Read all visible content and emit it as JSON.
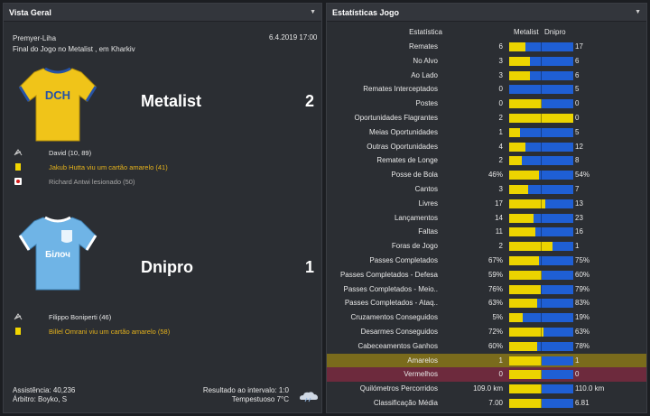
{
  "left_panel": {
    "title": "Vista Geral",
    "competition": "Premyer-Liha",
    "match_desc": "Final do Jogo no Metalist , em Kharkiv",
    "date_time": "6.4.2019 17:00",
    "home": {
      "name": "Metalist",
      "score": "2",
      "kit_text": "DCH",
      "kit_color": "#f0c419",
      "kit_trim": "#2753a6",
      "events": [
        {
          "icon": "goal-icon",
          "text": "David (10, 89)",
          "style": "white"
        },
        {
          "icon": "yellow-card-icon",
          "text": "Jakub Hutta viu um cartão amarelo (41)",
          "style": "yellow"
        },
        {
          "icon": "injury-icon",
          "text": "Richard Antwi lesionado (50)",
          "style": "grey"
        }
      ]
    },
    "away": {
      "name": "Dnipro",
      "score": "1",
      "kit_text": "Білоч",
      "kit_color": "#6fb4e6",
      "kit_trim": "#ffffff",
      "events": [
        {
          "icon": "goal-icon",
          "text": "Filippo Boniperti (46)",
          "style": "white"
        },
        {
          "icon": "yellow-card-icon",
          "text": "Billel Omrani viu um cartão amarelo (58)",
          "style": "yellow"
        }
      ]
    },
    "attendance": "Assistência: 40,236",
    "referee": "Árbitro: Boyko, S",
    "halftime": "Resultado ao intervalo: 1:0",
    "weather": "Tempestuoso 7°C"
  },
  "right_panel": {
    "title": "Estatísticas Jogo",
    "col_stat": "Estatística",
    "col_home": "Metalist",
    "col_away": "Dnipro",
    "colors": {
      "home": "#ecd400",
      "away": "#1f5fd4"
    },
    "rows": [
      {
        "label": "Remates",
        "home": "6",
        "away": "17",
        "share": 0.26
      },
      {
        "label": "No Alvo",
        "home": "3",
        "away": "6",
        "share": 0.33
      },
      {
        "label": "Ao Lado",
        "home": "3",
        "away": "6",
        "share": 0.33
      },
      {
        "label": "Remates Interceptados",
        "home": "0",
        "away": "5",
        "share": 0.0
      },
      {
        "label": "Postes",
        "home": "0",
        "away": "0",
        "share": 0.5
      },
      {
        "label": "Oportunidades Flagrantes",
        "home": "2",
        "away": "0",
        "share": 1.0
      },
      {
        "label": "Meias Oportunidades",
        "home": "1",
        "away": "5",
        "share": 0.17
      },
      {
        "label": "Outras Oportunidades",
        "home": "4",
        "away": "12",
        "share": 0.25
      },
      {
        "label": "Remates de Longe",
        "home": "2",
        "away": "8",
        "share": 0.2
      },
      {
        "label": "Posse de Bola",
        "home": "46%",
        "away": "54%",
        "share": 0.46
      },
      {
        "label": "Cantos",
        "home": "3",
        "away": "7",
        "share": 0.3
      },
      {
        "label": "Livres",
        "home": "17",
        "away": "13",
        "share": 0.57
      },
      {
        "label": "Lançamentos",
        "home": "14",
        "away": "23",
        "share": 0.38
      },
      {
        "label": "Faltas",
        "home": "11",
        "away": "16",
        "share": 0.41
      },
      {
        "label": "Foras de Jogo",
        "home": "2",
        "away": "1",
        "share": 0.67
      },
      {
        "label": "Passes Completados",
        "home": "67%",
        "away": "75%",
        "share": 0.47
      },
      {
        "label": "Passes Completados - Defesa",
        "home": "59%",
        "away": "60%",
        "share": 0.5
      },
      {
        "label": "Passes Completados - Meio..",
        "home": "76%",
        "away": "79%",
        "share": 0.49
      },
      {
        "label": "Passes Completados - Ataq..",
        "home": "63%",
        "away": "83%",
        "share": 0.43
      },
      {
        "label": "Cruzamentos Conseguidos",
        "home": "5%",
        "away": "19%",
        "share": 0.21
      },
      {
        "label": "Desarmes Conseguidos",
        "home": "72%",
        "away": "63%",
        "share": 0.53
      },
      {
        "label": "Cabeceamentos Ganhos",
        "home": "60%",
        "away": "78%",
        "share": 0.43
      },
      {
        "label": "Amarelos",
        "home": "1",
        "away": "1",
        "share": 0.5,
        "highlight": "yellow"
      },
      {
        "label": "Vermelhos",
        "home": "0",
        "away": "0",
        "share": 0.5,
        "highlight": "red"
      },
      {
        "label": "Quilómetros Percorridos",
        "home": "109.0 km",
        "away": "110.0 km",
        "share": 0.5
      },
      {
        "label": "Classificação Média",
        "home": "7.00",
        "away": "6.81",
        "share": 0.5
      }
    ]
  }
}
